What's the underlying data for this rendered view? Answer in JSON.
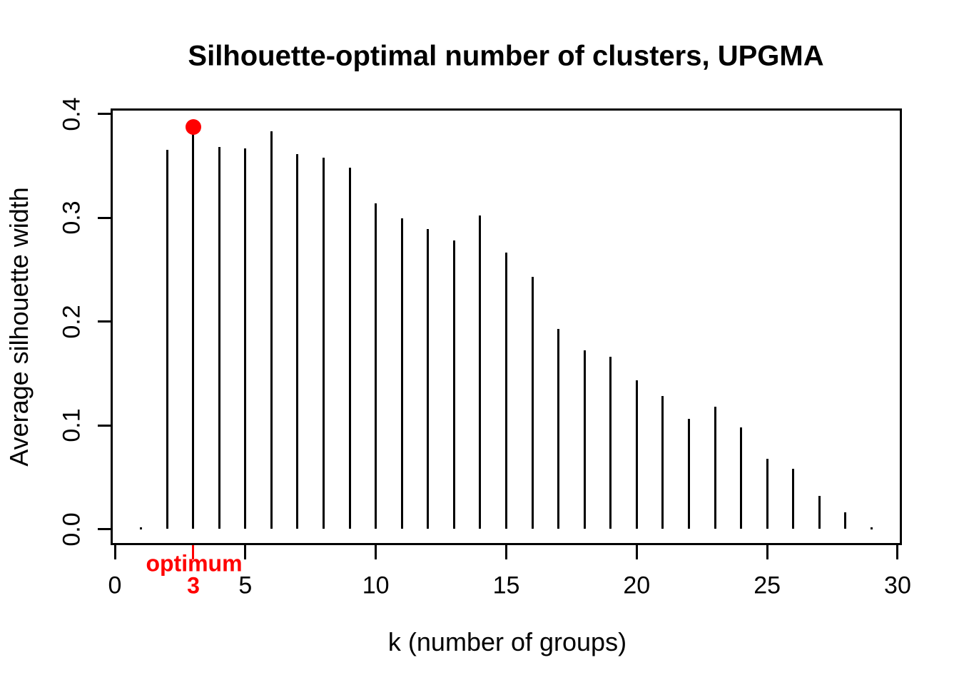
{
  "figure": {
    "background_color": "#FFFFFF",
    "foreground_color": "#000000",
    "accent_color": "#FF0000"
  },
  "chart_data": {
    "type": "bar",
    "subtype": "stem (R plot type='h')",
    "title": "Silhouette-optimal number of clusters, UPGMA",
    "xlabel": "k (number of groups)",
    "ylabel": "Average silhouette width",
    "xlim": [
      0,
      30
    ],
    "ylim": [
      0.0,
      0.4
    ],
    "grid": false,
    "legend_position": "none",
    "x_ticks": [
      0,
      5,
      10,
      15,
      20,
      25,
      30
    ],
    "x_tick_labels": [
      "0",
      "5",
      "10",
      "15",
      "20",
      "25",
      "30"
    ],
    "y_ticks": [
      0.0,
      0.1,
      0.2,
      0.3,
      0.4
    ],
    "y_tick_labels": [
      "0.0",
      "0.1",
      "0.2",
      "0.3",
      "0.4"
    ],
    "series": [
      {
        "name": "Average silhouette width",
        "x": [
          1,
          2,
          3,
          4,
          5,
          6,
          7,
          8,
          9,
          10,
          11,
          12,
          13,
          14,
          15,
          16,
          17,
          18,
          19,
          20,
          21,
          22,
          23,
          24,
          25,
          26,
          27,
          28,
          29
        ],
        "values": [
          0.001,
          0.365,
          0.387,
          0.368,
          0.367,
          0.383,
          0.361,
          0.358,
          0.348,
          0.314,
          0.299,
          0.289,
          0.278,
          0.302,
          0.266,
          0.243,
          0.193,
          0.172,
          0.166,
          0.143,
          0.128,
          0.106,
          0.118,
          0.098,
          0.068,
          0.058,
          0.032,
          0.016,
          0.001
        ],
        "color": "#000000"
      }
    ],
    "optimum": {
      "k": 3,
      "value": 0.387,
      "marker": "filled-circle",
      "marker_color": "#FF0000",
      "label": "optimum",
      "tick_label": "3",
      "label_color": "#FF0000"
    }
  }
}
